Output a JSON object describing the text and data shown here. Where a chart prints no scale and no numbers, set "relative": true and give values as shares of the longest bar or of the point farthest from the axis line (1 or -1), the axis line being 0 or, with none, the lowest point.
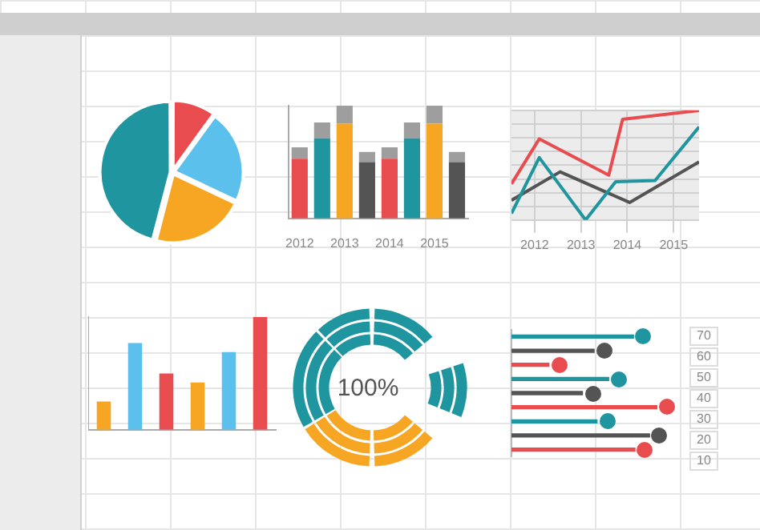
{
  "chart_data": [
    {
      "type": "pie",
      "categories": [
        null,
        null,
        null,
        null
      ],
      "values": [
        10,
        22,
        22,
        46
      ],
      "colors": [
        "#e84c4f",
        "#5bc0eb",
        "#f6a623",
        "#1f95a0"
      ]
    },
    {
      "type": "bar",
      "stacked": true,
      "relative": true,
      "tick_labels": "x",
      "categories": [
        "2012",
        null,
        "2013",
        null,
        "2014",
        null,
        "2015",
        null
      ],
      "series": [
        {
          "colors": [
            "#e84c4f",
            "#1f95a0",
            "#f6a623",
            "#545454",
            "#e84c4f",
            "#1f95a0",
            "#f6a623",
            "#545454"
          ],
          "values": [
            0.53,
            0.71,
            0.84,
            0.5,
            0.53,
            0.71,
            0.84,
            0.5
          ]
        },
        {
          "color": "#9e9e9e",
          "values": [
            0.1,
            0.14,
            0.16,
            0.09,
            0.1,
            0.14,
            0.16,
            0.09
          ]
        }
      ]
    },
    {
      "type": "line",
      "relative": true,
      "grid": true,
      "tick_labels": "x",
      "xlim": [
        2011.5,
        2015.55
      ],
      "xticks": [
        2012,
        2013,
        2014,
        2015
      ],
      "series": [
        {
          "color": "#e84c4f",
          "x": [
            2011.5,
            2012.1,
            2013.6,
            2013.9,
            2015.55
          ],
          "values": [
            0.33,
            0.74,
            0.41,
            0.92,
            1
          ]
        },
        {
          "color": "#1f95a0",
          "x": [
            2011.5,
            2012.1,
            2013.1,
            2013.75,
            2014.6,
            2015.55
          ],
          "values": [
            0.06,
            0.57,
            0,
            0.35,
            0.36,
            0.85
          ]
        },
        {
          "color": "#545454",
          "x": [
            2011.5,
            2012.55,
            2014.05,
            2015.55
          ],
          "values": [
            0.18,
            0.44,
            0.16,
            0.53
          ]
        }
      ]
    },
    {
      "type": "bar",
      "relative": true,
      "categories": [
        null,
        null,
        null,
        null,
        null,
        null
      ],
      "values": [
        0.25,
        0.77,
        0.5,
        0.42,
        0.69,
        1
      ],
      "colors": [
        "#f6a623",
        "#5bc0eb",
        "#e84c4f",
        "#f6a623",
        "#5bc0eb",
        "#e84c4f"
      ]
    },
    {
      "type": "other",
      "annotations": [
        "100%"
      ]
    },
    {
      "type": "bar",
      "orientation": "horizontal",
      "relative": true,
      "categories": [
        null,
        null,
        null,
        null,
        null,
        null,
        null,
        null,
        null
      ],
      "values": [
        0.84,
        0.57,
        0.26,
        0.67,
        0.49,
        1,
        0.59,
        0.95,
        0.85
      ],
      "colors": [
        "#1f95a0",
        "#545454",
        "#e84c4f",
        "#1f95a0",
        "#545454",
        "#e84c4f",
        "#1f95a0",
        "#545454",
        "#e84c4f"
      ],
      "annotations": [
        "70",
        "60",
        "50",
        "40",
        "30",
        "20",
        "10"
      ]
    }
  ]
}
